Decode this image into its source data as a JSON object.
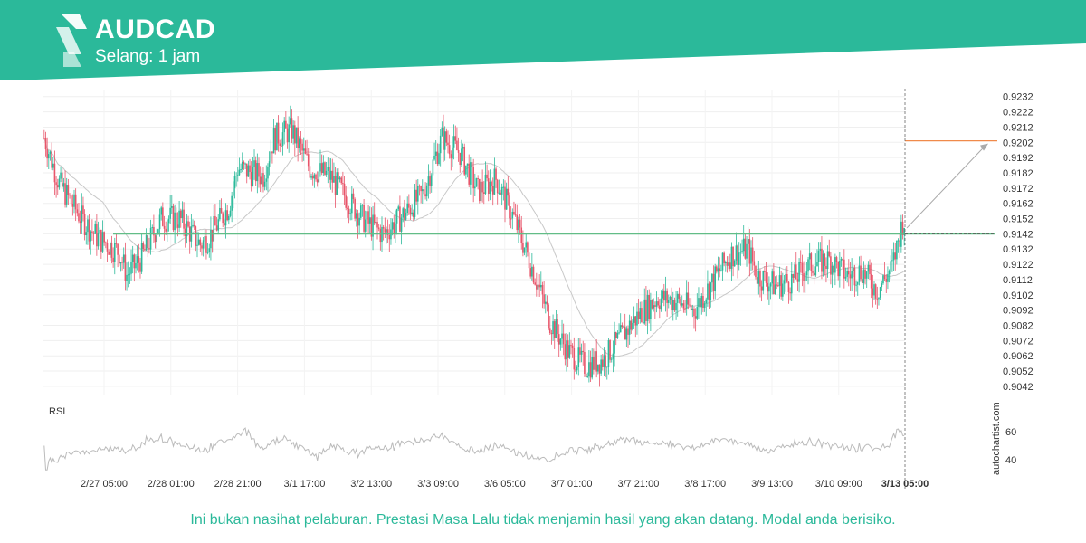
{
  "header": {
    "symbol": "AUDCAD",
    "timeframe": "Selang: 1 jam",
    "banner_color": "#2bb99a"
  },
  "footer": {
    "disclaimer": "Ini bukan nasihat pelaburan. Prestasi Masa Lalu tidak menjamin hasil yang akan datang. Modal anda berisiko."
  },
  "watermark": "autochartist.com",
  "colors": {
    "up": "#2bb99a",
    "down": "#e8556a",
    "ma": "#c8c8c8",
    "support": "#62bd87",
    "target": "#f08a4b",
    "rsi": "#bbbbbb"
  },
  "chart_data": {
    "type": "candlestick",
    "instrument": "AUDCAD",
    "price_axis": {
      "ticks": [
        "0.9232",
        "0.9222",
        "0.9212",
        "0.9202",
        "0.9192",
        "0.9182",
        "0.9172",
        "0.9162",
        "0.9152",
        "0.9142",
        "0.9132",
        "0.9122",
        "0.9112",
        "0.9102",
        "0.9092",
        "0.9082",
        "0.9072",
        "0.9062",
        "0.9052",
        "0.9042"
      ],
      "ylim": [
        0.9036,
        0.9236
      ]
    },
    "time_axis": {
      "labels": [
        "2/27 05:00",
        "2/28 01:00",
        "2/28 21:00",
        "3/1 17:00",
        "3/2 13:00",
        "3/3 09:00",
        "3/6 05:00",
        "3/7 01:00",
        "3/7 21:00",
        "3/8 17:00",
        "3/9 13:00",
        "3/10 09:00"
      ],
      "current_label": "3/13 05:00"
    },
    "key_level": 0.9142,
    "forecast_target": 0.9203,
    "path": [
      [
        0,
        0.9205
      ],
      [
        10,
        0.9175
      ],
      [
        25,
        0.9152
      ],
      [
        35,
        0.914
      ],
      [
        50,
        0.913
      ],
      [
        55,
        0.9115
      ],
      [
        64,
        0.9125
      ],
      [
        78,
        0.9152
      ],
      [
        90,
        0.9152
      ],
      [
        104,
        0.9135
      ],
      [
        110,
        0.914
      ],
      [
        123,
        0.916
      ],
      [
        129,
        0.9185
      ],
      [
        146,
        0.918
      ],
      [
        153,
        0.9205
      ],
      [
        165,
        0.921
      ],
      [
        177,
        0.9185
      ],
      [
        190,
        0.918
      ],
      [
        202,
        0.9165
      ],
      [
        214,
        0.915
      ],
      [
        226,
        0.9142
      ],
      [
        240,
        0.9155
      ],
      [
        252,
        0.9168
      ],
      [
        258,
        0.9185
      ],
      [
        265,
        0.9205
      ],
      [
        277,
        0.9195
      ],
      [
        289,
        0.917
      ],
      [
        301,
        0.9178
      ],
      [
        313,
        0.9152
      ],
      [
        325,
        0.912
      ],
      [
        337,
        0.9085
      ],
      [
        349,
        0.9065
      ],
      [
        361,
        0.9055
      ],
      [
        373,
        0.906
      ],
      [
        385,
        0.9075
      ],
      [
        397,
        0.909
      ],
      [
        409,
        0.91
      ],
      [
        421,
        0.9098
      ],
      [
        433,
        0.9092
      ],
      [
        445,
        0.911
      ],
      [
        457,
        0.9128
      ],
      [
        469,
        0.9132
      ],
      [
        475,
        0.9115
      ],
      [
        487,
        0.9108
      ],
      [
        499,
        0.9112
      ],
      [
        511,
        0.9122
      ],
      [
        523,
        0.9125
      ],
      [
        535,
        0.9115
      ],
      [
        545,
        0.9118
      ],
      [
        555,
        0.9105
      ],
      [
        565,
        0.912
      ],
      [
        572,
        0.915
      ]
    ],
    "rsi": {
      "label": "RSI",
      "ticks": [
        60,
        40
      ],
      "ylim": [
        32,
        68
      ]
    }
  }
}
